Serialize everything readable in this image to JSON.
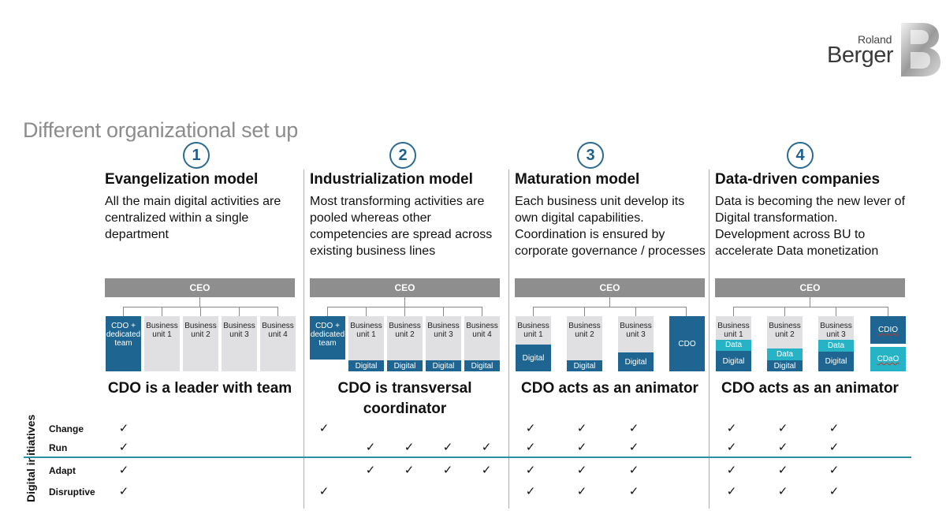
{
  "logo": {
    "top": "Roland",
    "bottom": "Berger"
  },
  "page_title": "Different organizational set up",
  "models": [
    {
      "number": "1",
      "title": "Evangelization model",
      "desc": [
        "All the main digital activities are",
        "centralized within a single",
        "department"
      ],
      "caption": [
        "CDO is a leader with team"
      ]
    },
    {
      "number": "2",
      "title": "Industrialization model",
      "desc": [
        "Most transforming activities are",
        "pooled whereas other",
        "competencies are spread across",
        "existing business lines"
      ],
      "caption": [
        "CDO is transversal",
        "coordinator"
      ]
    },
    {
      "number": "3",
      "title": "Maturation model",
      "desc": [
        "Each business unit develop its",
        "own digital capabilities.",
        "Coordination is ensured by",
        "corporate governance / processes"
      ],
      "caption": [
        "CDO acts as an animator"
      ]
    },
    {
      "number": "4",
      "title": "Data-driven companies",
      "desc": [
        "Data is becoming the new lever of",
        "Digital transformation.",
        "Development across BU to",
        "accelerate Data monetization"
      ],
      "caption": [
        "CDO acts as an animator"
      ]
    }
  ],
  "org": {
    "ceo": "CEO",
    "cdo_team": [
      "CDO +",
      "dedicated",
      "team"
    ],
    "business": "Business",
    "units": [
      "unit 1",
      "unit 2",
      "unit 3",
      "unit 4"
    ],
    "digital": "Digital",
    "data": "Data",
    "cdo": "CDO",
    "cdio": "CDIO",
    "cdao": "CDaO"
  },
  "initiatives": {
    "group_label": "Digital initiatives",
    "rows": [
      "Change",
      "Run",
      "Adapt",
      "Disruptive"
    ],
    "check": "✓"
  }
}
